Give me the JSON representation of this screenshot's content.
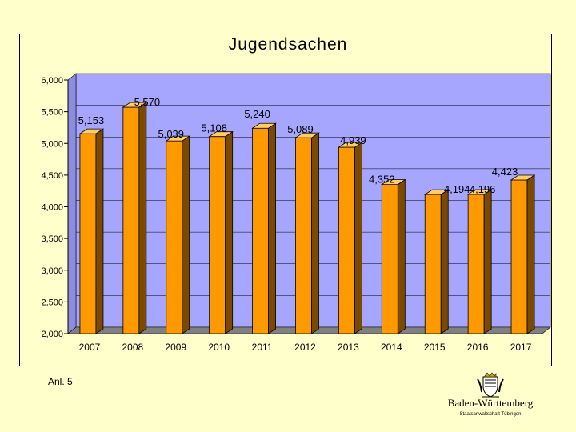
{
  "chart_data": {
    "type": "bar",
    "title": "Jugendsachen",
    "categories": [
      "2007",
      "2008",
      "2009",
      "2010",
      "2011",
      "2012",
      "2013",
      "2014",
      "2015",
      "2016",
      "2017"
    ],
    "values": [
      5153,
      5570,
      5039,
      5108,
      5240,
      5089,
      4939,
      4352,
      4194,
      4196,
      4423
    ],
    "value_labels": [
      "5,153",
      "5,570",
      "5,039",
      "5,108",
      "5,240",
      "5,089",
      "4,939",
      "4,352",
      "4,194",
      "4,196",
      "4,423"
    ],
    "ylim": [
      2000,
      6000
    ],
    "yticks": [
      2000,
      2500,
      3000,
      3500,
      4000,
      4500,
      5000,
      5500,
      6000
    ],
    "ytick_labels": [
      "2,000",
      "2,500",
      "3,000",
      "3,500",
      "4,000",
      "4,500",
      "5,000",
      "5,500",
      "6,000"
    ],
    "xlabel": "",
    "ylabel": "",
    "grid": true,
    "legend": "none"
  },
  "colors": {
    "bar_front": "#FF9900",
    "bar_side": "#7A4A00",
    "bar_top": "#FFCC66",
    "wall": "#A6A6FF",
    "floor": "#808080",
    "background": "#FFFFCC"
  },
  "footer": {
    "note": "Anl. 5",
    "logo_name": "Baden-Württemberg",
    "logo_sub": "Staatsanwaltschaft Tübingen"
  },
  "logo_icon": "coat-of-arms-icon"
}
